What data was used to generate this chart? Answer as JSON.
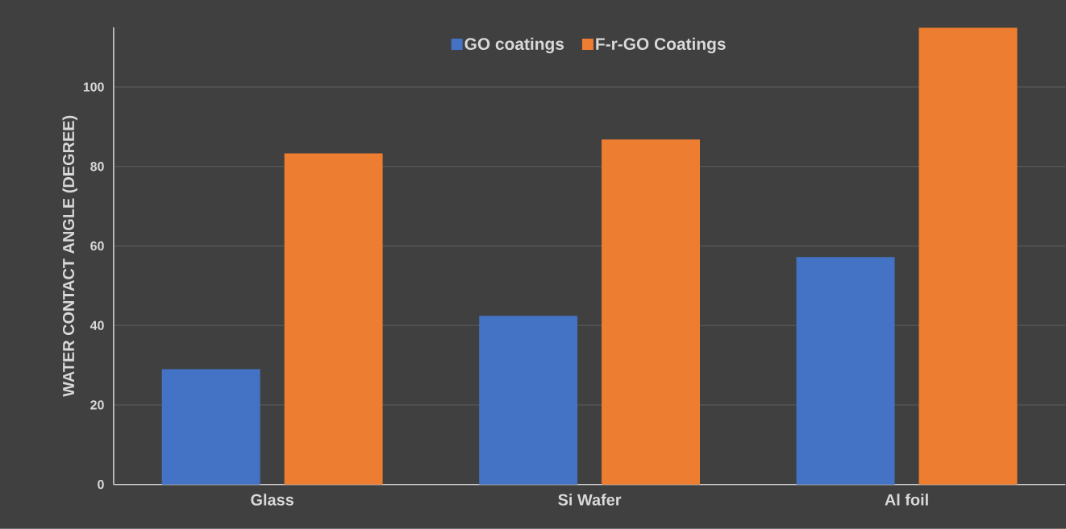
{
  "chart_data": {
    "type": "bar",
    "ylabel": "WATER CONTACT ANGLE (DEGREE)",
    "categories": [
      "Glass",
      "Si Wafer",
      "Al foil"
    ],
    "series": [
      {
        "name": "GO coatings",
        "color": "#4472c4",
        "values": [
          29,
          42.4,
          57.2
        ]
      },
      {
        "name": "F-r-GO Coatings",
        "color": "#ed7d31",
        "values": [
          83.3,
          86.8,
          114.9
        ]
      }
    ],
    "ylim": [
      0,
      115
    ],
    "yticks": [
      0,
      20,
      40,
      60,
      80,
      100
    ],
    "grid": "y",
    "legend": "top"
  }
}
